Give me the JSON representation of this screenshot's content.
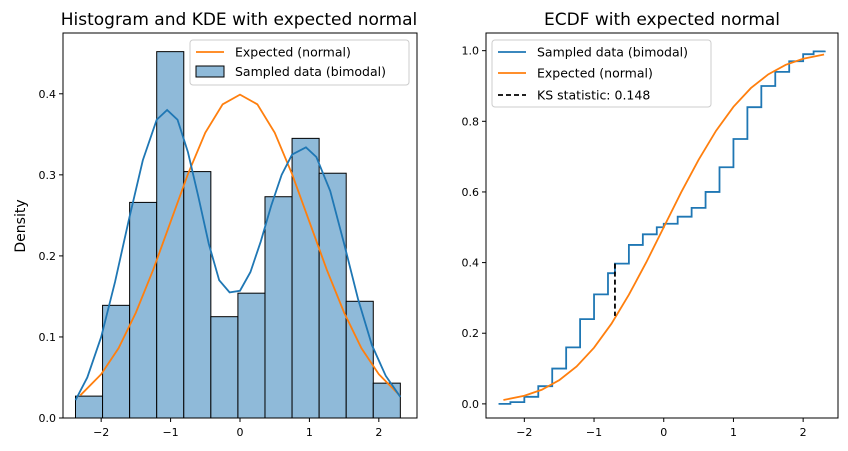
{
  "chart_data": [
    {
      "type": "bar",
      "title": "Histogram and KDE with expected normal",
      "xlabel": "",
      "ylabel": "Density",
      "xlim": [
        -2.55,
        2.55
      ],
      "ylim": [
        0,
        0.475
      ],
      "xticks": [
        -2,
        -1,
        0,
        1,
        2
      ],
      "xtick_labels": [
        "−2",
        "−1",
        "0",
        "1",
        "2"
      ],
      "yticks": [
        0.0,
        0.1,
        0.2,
        0.3,
        0.4
      ],
      "ytick_labels": [
        "0.0",
        "0.1",
        "0.2",
        "0.3",
        "0.4"
      ],
      "legend_position": "top-right",
      "histogram": {
        "name": "Sampled data (bimodal)",
        "bin_edges": [
          -2.37,
          -1.98,
          -1.59,
          -1.2,
          -0.81,
          -0.42,
          -0.03,
          0.36,
          0.75,
          1.14,
          1.53,
          1.92,
          2.31
        ],
        "densities": [
          0.027,
          0.139,
          0.266,
          0.452,
          0.304,
          0.125,
          0.154,
          0.273,
          0.345,
          0.302,
          0.144,
          0.043
        ]
      },
      "series": [
        {
          "name": "Expected (normal)",
          "x": [
            -2.3,
            -2.0,
            -1.75,
            -1.5,
            -1.25,
            -1.0,
            -0.75,
            -0.5,
            -0.25,
            0.0,
            0.25,
            0.5,
            0.75,
            1.0,
            1.25,
            1.5,
            1.75,
            2.0,
            2.3
          ],
          "y": [
            0.028,
            0.054,
            0.086,
            0.13,
            0.183,
            0.242,
            0.301,
            0.352,
            0.387,
            0.399,
            0.387,
            0.352,
            0.301,
            0.242,
            0.183,
            0.13,
            0.086,
            0.054,
            0.028
          ]
        },
        {
          "name": "",
          "x": [
            -2.37,
            -2.2,
            -2.0,
            -1.8,
            -1.6,
            -1.4,
            -1.2,
            -1.05,
            -0.9,
            -0.75,
            -0.6,
            -0.45,
            -0.3,
            -0.15,
            0.0,
            0.15,
            0.3,
            0.45,
            0.6,
            0.75,
            0.95,
            1.1,
            1.3,
            1.5,
            1.7,
            1.9,
            2.1,
            2.31
          ],
          "y": [
            0.022,
            0.05,
            0.1,
            0.168,
            0.245,
            0.318,
            0.368,
            0.38,
            0.368,
            0.328,
            0.273,
            0.215,
            0.17,
            0.155,
            0.157,
            0.18,
            0.218,
            0.262,
            0.3,
            0.325,
            0.334,
            0.322,
            0.28,
            0.215,
            0.147,
            0.09,
            0.052,
            0.026
          ]
        }
      ]
    },
    {
      "type": "line",
      "title": "ECDF with expected normal",
      "xlabel": "",
      "ylabel": "",
      "xlim": [
        -2.55,
        2.5
      ],
      "ylim": [
        -0.04,
        1.05
      ],
      "xticks": [
        -2,
        -1,
        0,
        1,
        2
      ],
      "xtick_labels": [
        "−2",
        "−1",
        "0",
        "1",
        "2"
      ],
      "yticks": [
        0.0,
        0.2,
        0.4,
        0.6,
        0.8,
        1.0
      ],
      "ytick_labels": [
        "0.0",
        "0.2",
        "0.4",
        "0.6",
        "0.8",
        "1.0"
      ],
      "legend_position": "top-left",
      "series": [
        {
          "name": "Sampled data (bimodal)",
          "x": [
            -2.37,
            -2.2,
            -2.0,
            -1.8,
            -1.6,
            -1.4,
            -1.2,
            -1.0,
            -0.8,
            -0.7,
            -0.5,
            -0.3,
            -0.1,
            0.0,
            0.2,
            0.4,
            0.6,
            0.8,
            1.0,
            1.2,
            1.4,
            1.6,
            1.8,
            2.0,
            2.15,
            2.31
          ],
          "y": [
            0.0,
            0.005,
            0.02,
            0.05,
            0.1,
            0.16,
            0.24,
            0.31,
            0.37,
            0.397,
            0.45,
            0.48,
            0.5,
            0.51,
            0.53,
            0.555,
            0.6,
            0.67,
            0.75,
            0.84,
            0.9,
            0.94,
            0.97,
            0.99,
            0.998,
            1.0
          ]
        },
        {
          "name": "Expected (normal)",
          "x": [
            -2.3,
            -2.0,
            -1.75,
            -1.5,
            -1.25,
            -1.0,
            -0.75,
            -0.5,
            -0.25,
            0.0,
            0.25,
            0.5,
            0.75,
            1.0,
            1.25,
            1.5,
            1.75,
            2.0,
            2.3
          ],
          "y": [
            0.011,
            0.023,
            0.04,
            0.067,
            0.106,
            0.159,
            0.227,
            0.309,
            0.401,
            0.5,
            0.599,
            0.691,
            0.773,
            0.841,
            0.894,
            0.933,
            0.96,
            0.977,
            0.989
          ]
        },
        {
          "name": "KS statistic: 0.148",
          "x": [
            -0.7,
            -0.7
          ],
          "y": [
            0.397,
            0.249
          ]
        }
      ]
    }
  ],
  "colors": {
    "blue": "#1f77b4",
    "orange": "#ff7f0e",
    "hist_fill": "#8fbad9",
    "black": "#000000"
  }
}
